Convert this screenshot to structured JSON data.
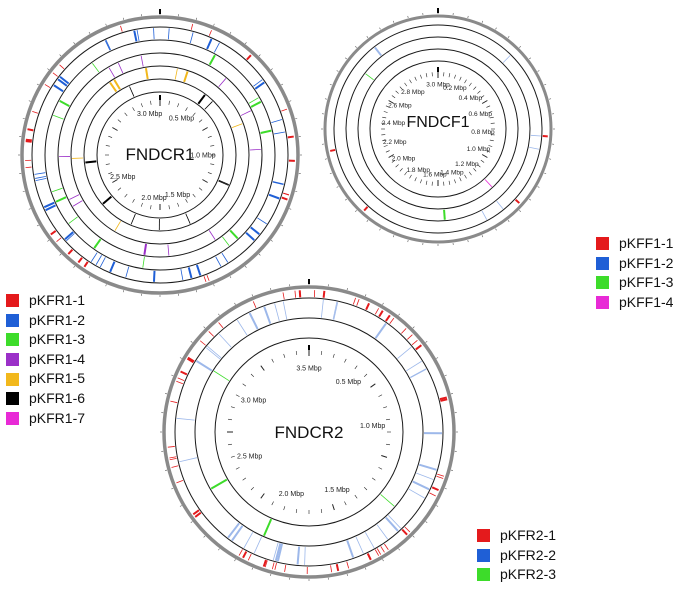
{
  "colors": {
    "outer_ring": "#8a8a8a",
    "ring_line": "#1a1a1a",
    "red": "#e41a1c",
    "blue": "#1f5fd6",
    "green": "#3ddc2a",
    "purple": "#9b30c8",
    "yellow": "#f2b81c",
    "black": "#000000",
    "magenta": "#e82ad6",
    "light_blue": "#9db8ea",
    "light_red": "#f2a1a1"
  },
  "diagrams": [
    {
      "id": "fndcr1",
      "title": "FNDCR1",
      "ticks": [
        "3.0 Mbp",
        "0.5 Mbp",
        "1.0 Mbp",
        "1.5 Mbp",
        "2.0 Mbp",
        "2.5 Mbp"
      ],
      "legend": [
        {
          "label": "pKFR1-1",
          "color": "#e41a1c"
        },
        {
          "label": "pKFR1-2",
          "color": "#1f5fd6"
        },
        {
          "label": "pKFR1-3",
          "color": "#3ddc2a"
        },
        {
          "label": "pKFR1-4",
          "color": "#9b30c8"
        },
        {
          "label": "pKFR1-5",
          "color": "#f2b81c"
        },
        {
          "label": "pKFR1-6",
          "color": "#000000"
        },
        {
          "label": "pKFR1-7",
          "color": "#e82ad6"
        }
      ]
    },
    {
      "id": "fndcf1",
      "title": "FNDCF1",
      "ticks": [
        "3.0 Mbp",
        "0.2 Mbp",
        "0.4 Mbp",
        "0.6 Mbp",
        "0.8 Mbp",
        "1.0 Mbp",
        "1.2 Mbp",
        "1.4 Mbp",
        "1.6 Mbp",
        "1.8 Mbp",
        "2.0 Mbp",
        "2.2 Mbp",
        "2.4 Mbp",
        "2.6 Mbp",
        "2.8 Mbp"
      ],
      "legend": [
        {
          "label": "pKFF1-1",
          "color": "#e41a1c"
        },
        {
          "label": "pKFF1-2",
          "color": "#1f5fd6"
        },
        {
          "label": "pKFF1-3",
          "color": "#3ddc2a"
        },
        {
          "label": "pKFF1-4",
          "color": "#e82ad6"
        }
      ]
    },
    {
      "id": "fndcr2",
      "title": "FNDCR2",
      "ticks": [
        "3.5 Mbp",
        "0.5 Mbp",
        "1.0 Mbp",
        "1.5 Mbp",
        "2.0 Mbp",
        "2.5 Mbp",
        "3.0 Mbp"
      ],
      "legend": [
        {
          "label": "pKFR2-1",
          "color": "#e41a1c"
        },
        {
          "label": "pKFR2-2",
          "color": "#1f5fd6"
        },
        {
          "label": "pKFR2-3",
          "color": "#3ddc2a"
        }
      ]
    }
  ]
}
